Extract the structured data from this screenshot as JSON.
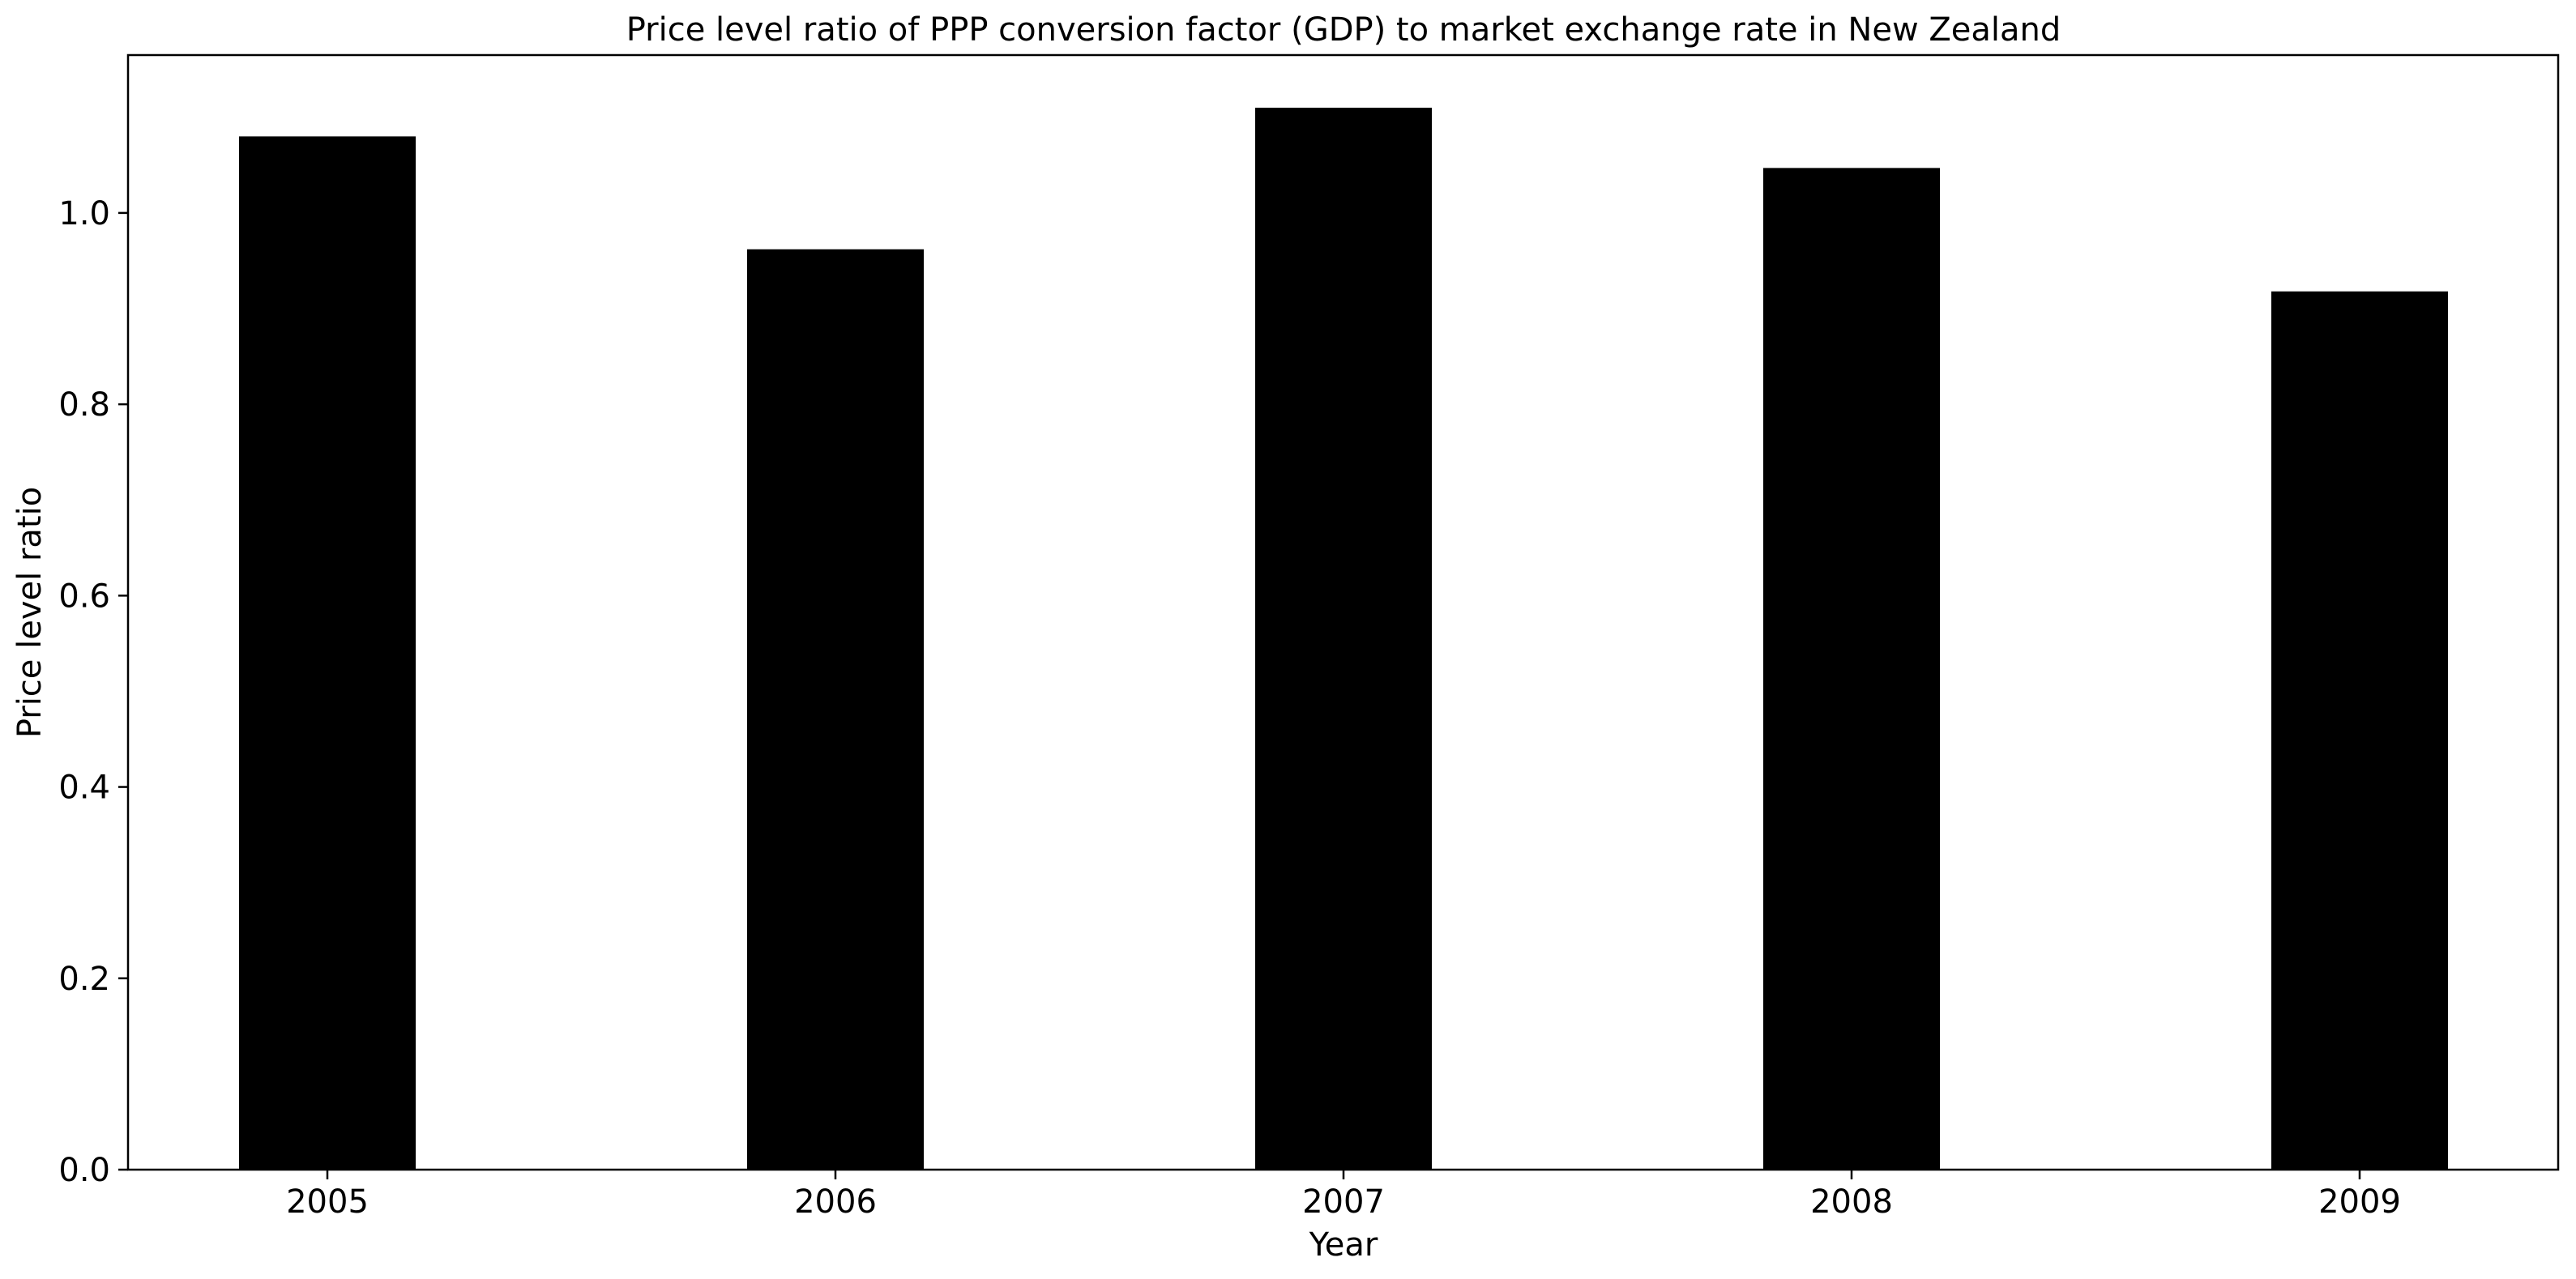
{
  "chart_data": {
    "type": "bar",
    "title": "Price level ratio of PPP conversion factor (GDP) to market exchange rate in New Zealand",
    "xlabel": "Year",
    "ylabel": "Price level ratio",
    "categories": [
      "2005",
      "2006",
      "2007",
      "2008",
      "2009"
    ],
    "values": [
      1.08,
      0.962,
      1.11,
      1.047,
      0.918
    ],
    "ylim": [
      0,
      1.165
    ],
    "yticks": [
      0.0,
      0.2,
      0.4,
      0.6,
      0.8,
      1.0
    ],
    "ytick_labels": [
      "0.0",
      "0.2",
      "0.4",
      "0.6",
      "0.8",
      "1.0"
    ],
    "bar_color": "#000000",
    "grid": false,
    "legend": "none"
  }
}
